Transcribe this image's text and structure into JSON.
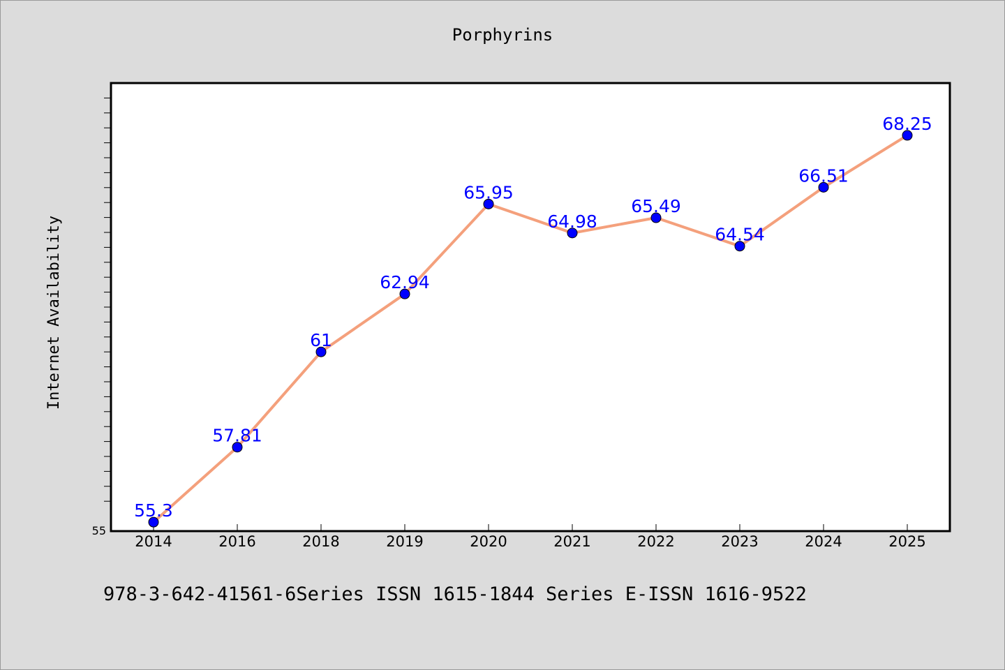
{
  "chart_data": {
    "type": "line",
    "title": "Porphyrins",
    "xlabel": "",
    "ylabel": "Internet Availability",
    "categories": [
      "2014",
      "2016",
      "2018",
      "2019",
      "2020",
      "2021",
      "2022",
      "2023",
      "2024",
      "2025"
    ],
    "series": [
      {
        "values": [
          55.3,
          57.81,
          61,
          62.94,
          65.95,
          64.98,
          65.49,
          64.54,
          66.51,
          68.25
        ],
        "data_labels": [
          "55.3",
          "57.81",
          "61",
          "62.94",
          "65.95",
          "64.98",
          "65.49",
          "64.54",
          "66.51",
          "68.25"
        ]
      }
    ],
    "ylim": [
      55,
      70
    ],
    "y_tick_labels": [
      "55"
    ],
    "line_color": "#f4a07c",
    "marker_color": "#0000ff",
    "label_color": "#0000ff",
    "grid": false,
    "legend": "none"
  },
  "footer_note": "978-3-642-41561-6Series ISSN 1615-1844 Series E-ISSN 1616-9522",
  "colors": {
    "background": "#dcdcdc",
    "plot_background": "#ffffff"
  }
}
